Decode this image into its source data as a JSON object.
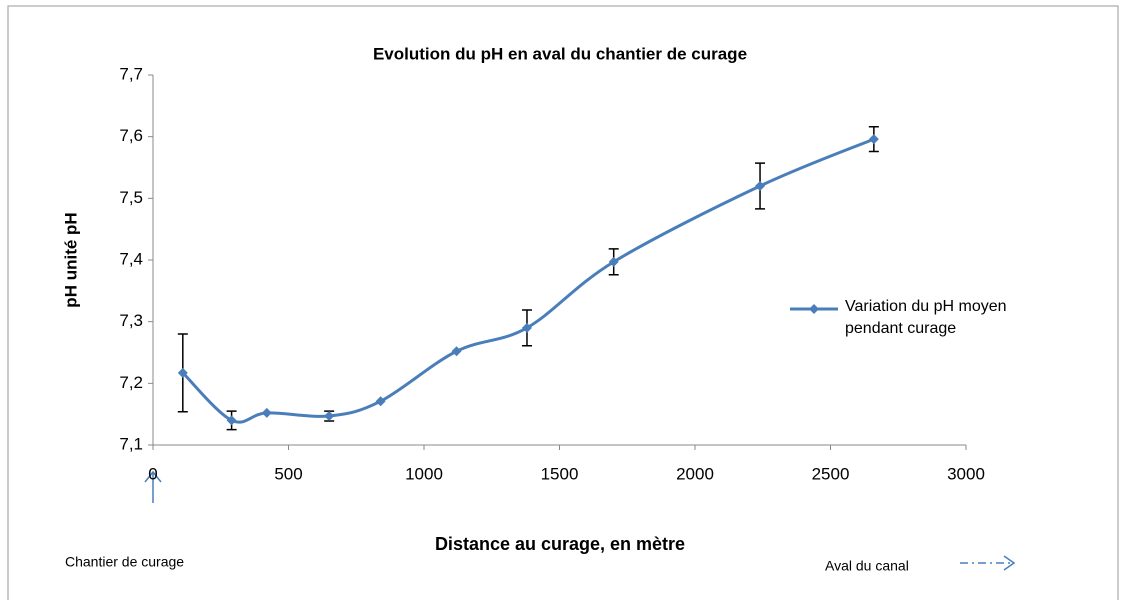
{
  "chart_data": {
    "type": "line",
    "title": "Evolution du pH en aval du chantier de curage",
    "xlabel": "Distance au curage, en mètre",
    "ylabel": "pH unité pH",
    "x": [
      110,
      290,
      420,
      650,
      840,
      1120,
      1380,
      1700,
      2240,
      2660
    ],
    "series": [
      {
        "name": "Variation du pH moyen pendant curage",
        "color": "#4a7ebb",
        "values": [
          7.217,
          7.14,
          7.152,
          7.147,
          7.171,
          7.252,
          7.29,
          7.397,
          7.52,
          7.596
        ],
        "errors": [
          0.063,
          0.015,
          null,
          0.008,
          null,
          null,
          0.029,
          0.021,
          0.037,
          0.02
        ]
      }
    ],
    "xlim": [
      0,
      3000
    ],
    "xticks": [
      0,
      500,
      1000,
      1500,
      2000,
      2500,
      3000
    ],
    "ylim": [
      7.1,
      7.7
    ],
    "yticks": [
      {
        "value": 7.1,
        "label": "7,1"
      },
      {
        "value": 7.2,
        "label": "7,2"
      },
      {
        "value": 7.3,
        "label": "7,3"
      },
      {
        "value": 7.4,
        "label": "7,4"
      },
      {
        "value": 7.5,
        "label": "7,5"
      },
      {
        "value": 7.6,
        "label": "7,6"
      },
      {
        "value": 7.7,
        "label": "7,7"
      }
    ],
    "legend": "right",
    "annotations": [
      "Chantier  de curage",
      "Aval du canal"
    ]
  }
}
